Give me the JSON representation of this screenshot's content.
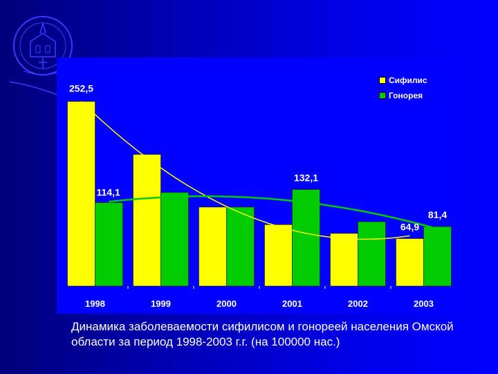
{
  "caption": "Динамика заболеваемости сифилисом и гонореей населения Омской области за период 1998-2003 г.г. (на 100000 нас.)",
  "colors": {
    "syphilis": "#ffff00",
    "gonorrhea": "#00cc00",
    "panel": "#0000ff",
    "text": "#ffffff"
  },
  "chart_data": {
    "type": "bar",
    "categories": [
      "1998",
      "1999",
      "2000",
      "2001",
      "2002",
      "2003"
    ],
    "series": [
      {
        "name": "Сифилис",
        "values": [
          252.5,
          180.0,
          108.0,
          84.0,
          72.0,
          64.9
        ],
        "trendline": true
      },
      {
        "name": "Гонорея",
        "values": [
          114.1,
          128.0,
          108.0,
          132.1,
          88.0,
          81.4
        ],
        "trendline": true
      }
    ],
    "data_labels": [
      {
        "series": 0,
        "index": 0,
        "text": "252,5"
      },
      {
        "series": 1,
        "index": 0,
        "text": "114,1"
      },
      {
        "series": 1,
        "index": 3,
        "text": "132,1"
      },
      {
        "series": 0,
        "index": 5,
        "text": "64,9"
      },
      {
        "series": 1,
        "index": 5,
        "text": "81,4"
      }
    ],
    "ylim": [
      0,
      270
    ],
    "grid": false,
    "legend_position": "top-right"
  }
}
